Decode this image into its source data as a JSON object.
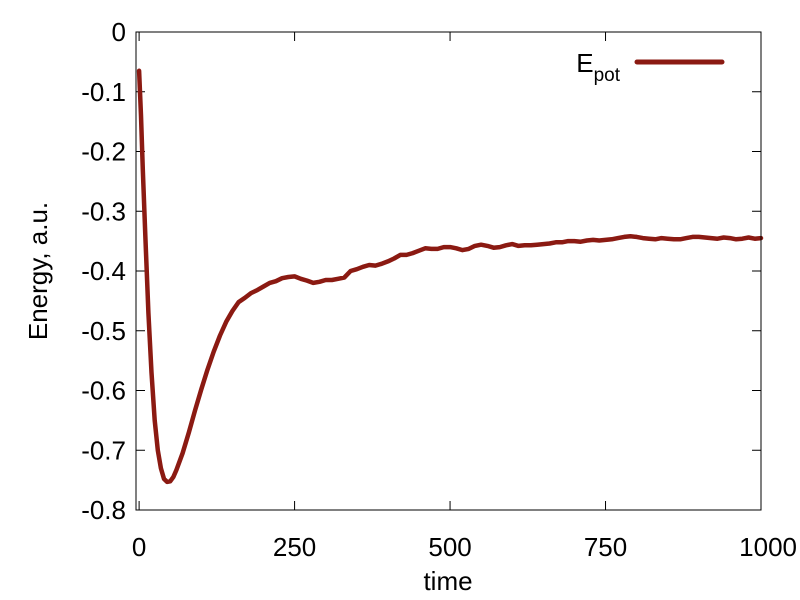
{
  "chart_data": {
    "type": "line",
    "title": "",
    "xlabel": "time",
    "ylabel": "Energy, a.u.",
    "xlim": [
      -5,
      1000
    ],
    "ylim": [
      -0.8,
      0
    ],
    "x_ticks": [
      0,
      250,
      500,
      750,
      1000
    ],
    "y_ticks": [
      -0.8,
      -0.7,
      -0.6,
      -0.5,
      -0.4,
      -0.3,
      -0.2,
      -0.1,
      0
    ],
    "x_tick_labels": [
      "0",
      "250",
      "500",
      "750",
      "1000"
    ],
    "y_tick_labels": [
      "-0.8",
      "-0.7",
      "-0.6",
      "-0.5",
      "-0.4",
      "-0.3",
      "-0.2",
      "-0.1",
      "0"
    ],
    "grid": false,
    "legend_position": "top-right",
    "series": [
      {
        "name_main": "E",
        "name_sub": "pot",
        "color": "#8b1a12",
        "points": [
          [
            0,
            -0.065
          ],
          [
            3,
            -0.14
          ],
          [
            6,
            -0.23
          ],
          [
            10,
            -0.34
          ],
          [
            15,
            -0.47
          ],
          [
            20,
            -0.57
          ],
          [
            25,
            -0.65
          ],
          [
            30,
            -0.7
          ],
          [
            35,
            -0.73
          ],
          [
            40,
            -0.748
          ],
          [
            45,
            -0.753
          ],
          [
            50,
            -0.752
          ],
          [
            55,
            -0.745
          ],
          [
            60,
            -0.733
          ],
          [
            70,
            -0.705
          ],
          [
            80,
            -0.67
          ],
          [
            90,
            -0.633
          ],
          [
            100,
            -0.598
          ],
          [
            110,
            -0.565
          ],
          [
            120,
            -0.535
          ],
          [
            130,
            -0.508
          ],
          [
            140,
            -0.485
          ],
          [
            150,
            -0.467
          ],
          [
            160,
            -0.452
          ],
          [
            170,
            -0.445
          ],
          [
            180,
            -0.437
          ],
          [
            190,
            -0.432
          ],
          [
            200,
            -0.426
          ],
          [
            210,
            -0.42
          ],
          [
            220,
            -0.417
          ],
          [
            230,
            -0.412
          ],
          [
            240,
            -0.41
          ],
          [
            250,
            -0.409
          ],
          [
            260,
            -0.413
          ],
          [
            270,
            -0.416
          ],
          [
            280,
            -0.42
          ],
          [
            290,
            -0.418
          ],
          [
            300,
            -0.415
          ],
          [
            310,
            -0.415
          ],
          [
            320,
            -0.413
          ],
          [
            330,
            -0.411
          ],
          [
            340,
            -0.4
          ],
          [
            350,
            -0.397
          ],
          [
            360,
            -0.393
          ],
          [
            370,
            -0.39
          ],
          [
            380,
            -0.391
          ],
          [
            390,
            -0.388
          ],
          [
            400,
            -0.384
          ],
          [
            410,
            -0.379
          ],
          [
            420,
            -0.373
          ],
          [
            430,
            -0.373
          ],
          [
            440,
            -0.37
          ],
          [
            450,
            -0.366
          ],
          [
            460,
            -0.362
          ],
          [
            470,
            -0.363
          ],
          [
            480,
            -0.363
          ],
          [
            490,
            -0.36
          ],
          [
            500,
            -0.36
          ],
          [
            510,
            -0.362
          ],
          [
            520,
            -0.365
          ],
          [
            530,
            -0.363
          ],
          [
            540,
            -0.358
          ],
          [
            550,
            -0.356
          ],
          [
            560,
            -0.358
          ],
          [
            570,
            -0.361
          ],
          [
            580,
            -0.36
          ],
          [
            590,
            -0.357
          ],
          [
            600,
            -0.355
          ],
          [
            610,
            -0.358
          ],
          [
            620,
            -0.357
          ],
          [
            630,
            -0.357
          ],
          [
            640,
            -0.356
          ],
          [
            650,
            -0.355
          ],
          [
            660,
            -0.354
          ],
          [
            670,
            -0.352
          ],
          [
            680,
            -0.352
          ],
          [
            690,
            -0.35
          ],
          [
            700,
            -0.35
          ],
          [
            710,
            -0.351
          ],
          [
            720,
            -0.349
          ],
          [
            730,
            -0.348
          ],
          [
            740,
            -0.349
          ],
          [
            750,
            -0.348
          ],
          [
            760,
            -0.347
          ],
          [
            770,
            -0.345
          ],
          [
            780,
            -0.343
          ],
          [
            790,
            -0.342
          ],
          [
            800,
            -0.343
          ],
          [
            810,
            -0.345
          ],
          [
            820,
            -0.346
          ],
          [
            830,
            -0.347
          ],
          [
            840,
            -0.345
          ],
          [
            850,
            -0.346
          ],
          [
            860,
            -0.347
          ],
          [
            870,
            -0.347
          ],
          [
            880,
            -0.345
          ],
          [
            890,
            -0.343
          ],
          [
            900,
            -0.343
          ],
          [
            910,
            -0.344
          ],
          [
            920,
            -0.345
          ],
          [
            930,
            -0.346
          ],
          [
            940,
            -0.344
          ],
          [
            950,
            -0.345
          ],
          [
            960,
            -0.347
          ],
          [
            970,
            -0.346
          ],
          [
            980,
            -0.344
          ],
          [
            990,
            -0.346
          ],
          [
            1000,
            -0.345
          ]
        ]
      }
    ]
  }
}
